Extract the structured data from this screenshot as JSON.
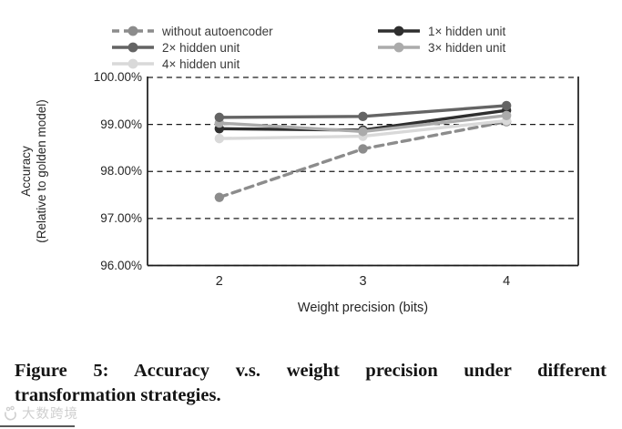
{
  "chart_data": {
    "type": "line",
    "x": [
      2,
      3,
      4
    ],
    "xticks": [
      "2",
      "3",
      "4"
    ],
    "xlabel": "Weight precision (bits)",
    "ylabel_line1": "Accuracy",
    "ylabel_line2": "(Relative to golden model)",
    "ylim": [
      96,
      100
    ],
    "ytick_values": [
      100,
      99,
      98,
      97,
      96
    ],
    "yticks": [
      "100.00%",
      "99.00%",
      "98.00%",
      "97.00%",
      "96.00%"
    ],
    "grid": "horizontal-dashed",
    "legend_position": "top",
    "marker": "circle",
    "series": [
      {
        "name": "without autoencoder",
        "values": [
          97.45,
          98.48,
          99.06
        ],
        "color": "#8c8c8c",
        "dashed": true,
        "zorder": 1
      },
      {
        "name": "1× hidden unit",
        "values": [
          98.91,
          98.88,
          99.3
        ],
        "color": "#2f2f2f",
        "dashed": false,
        "zorder": 3
      },
      {
        "name": "2× hidden unit",
        "values": [
          99.15,
          99.17,
          99.4
        ],
        "color": "#646464",
        "dashed": false,
        "zorder": 5
      },
      {
        "name": "3× hidden unit",
        "values": [
          99.03,
          98.85,
          99.19
        ],
        "color": "#ababab",
        "dashed": false,
        "zorder": 4
      },
      {
        "name": "4× hidden unit",
        "values": [
          98.7,
          98.75,
          99.08
        ],
        "color": "#d9d9d9",
        "dashed": false,
        "zorder": 2
      }
    ]
  },
  "legend": {
    "columns": [
      [
        "without autoencoder",
        "2× hidden unit",
        "4× hidden unit"
      ],
      [
        "1× hidden unit",
        "3× hidden unit"
      ]
    ]
  },
  "caption": {
    "line1": "Figure 5: Accuracy v.s. weight precision under different",
    "line2": "transformation strategies."
  },
  "watermark": {
    "text": "大数跨境"
  }
}
